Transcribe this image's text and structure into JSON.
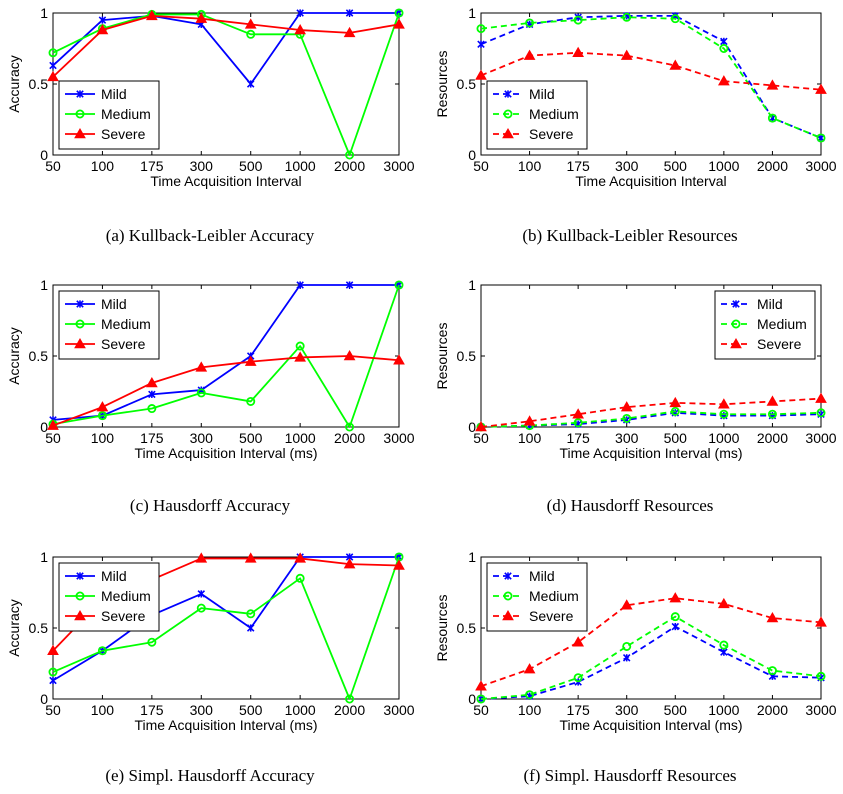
{
  "chart_data": [
    {
      "type": "line",
      "caption": "(a)  Kullback-Leibler Accuracy",
      "xlabel": "Time Acquisition Interval",
      "ylabel": "Accuracy",
      "categories": [
        "50",
        "100",
        "175",
        "300",
        "500",
        "1000",
        "2000",
        "3000"
      ],
      "ylim": [
        0,
        1
      ],
      "yticks": [
        "0",
        "0.5",
        "1"
      ],
      "legend_position": "bottom-left",
      "dashed": false,
      "series": [
        {
          "name": "Mild",
          "color": "#0000ff",
          "marker": "x",
          "values": [
            0.63,
            0.95,
            0.98,
            0.92,
            0.5,
            1.0,
            1.0,
            1.0
          ]
        },
        {
          "name": "Medium",
          "color": "#00ff00",
          "marker": "o",
          "values": [
            0.72,
            0.89,
            0.99,
            0.99,
            0.85,
            0.85,
            0.0,
            1.0
          ]
        },
        {
          "name": "Severe",
          "color": "#ff0000",
          "marker": "triangle",
          "values": [
            0.55,
            0.88,
            0.98,
            0.96,
            0.92,
            0.88,
            0.86,
            0.92
          ]
        }
      ]
    },
    {
      "type": "line",
      "caption": "(b)  Kullback-Leibler Resources",
      "xlabel": "Time Acquisition Interval",
      "ylabel": "Resources",
      "categories": [
        "50",
        "100",
        "175",
        "300",
        "500",
        "1000",
        "2000",
        "3000"
      ],
      "ylim": [
        0,
        1
      ],
      "yticks": [
        "0",
        "0.5",
        "1"
      ],
      "legend_position": "bottom-left",
      "dashed": true,
      "series": [
        {
          "name": "Mild",
          "color": "#0000ff",
          "marker": "x",
          "values": [
            0.78,
            0.92,
            0.97,
            0.98,
            0.98,
            0.8,
            0.26,
            0.12
          ]
        },
        {
          "name": "Medium",
          "color": "#00ff00",
          "marker": "o",
          "values": [
            0.89,
            0.93,
            0.95,
            0.97,
            0.96,
            0.75,
            0.26,
            0.12
          ]
        },
        {
          "name": "Severe",
          "color": "#ff0000",
          "marker": "triangle",
          "values": [
            0.56,
            0.7,
            0.72,
            0.7,
            0.63,
            0.52,
            0.49,
            0.46
          ]
        }
      ]
    },
    {
      "type": "line",
      "caption": "(c)  Hausdorff Accuracy",
      "xlabel": "Time Acquisition Interval (ms)",
      "ylabel": "Accuracy",
      "categories": [
        "50",
        "100",
        "175",
        "300",
        "500",
        "1000",
        "2000",
        "3000"
      ],
      "ylim": [
        0,
        1
      ],
      "yticks": [
        "0",
        "0.5",
        "1"
      ],
      "legend_position": "top-left",
      "dashed": false,
      "series": [
        {
          "name": "Mild",
          "color": "#0000ff",
          "marker": "x",
          "values": [
            0.05,
            0.08,
            0.23,
            0.26,
            0.5,
            1.0,
            1.0,
            1.0
          ]
        },
        {
          "name": "Medium",
          "color": "#00ff00",
          "marker": "o",
          "values": [
            0.02,
            0.08,
            0.13,
            0.24,
            0.18,
            0.57,
            0.0,
            1.0
          ]
        },
        {
          "name": "Severe",
          "color": "#ff0000",
          "marker": "triangle",
          "values": [
            0.01,
            0.14,
            0.31,
            0.42,
            0.46,
            0.49,
            0.5,
            0.47
          ]
        }
      ]
    },
    {
      "type": "line",
      "caption": "(d)  Hausdorff Resources",
      "xlabel": "Time Acquisition Interval (ms)",
      "ylabel": "Resources",
      "categories": [
        "50",
        "100",
        "175",
        "300",
        "500",
        "1000",
        "2000",
        "3000"
      ],
      "ylim": [
        0,
        1
      ],
      "yticks": [
        "0",
        "0.5",
        "1"
      ],
      "legend_position": "top-right",
      "dashed": true,
      "series": [
        {
          "name": "Mild",
          "color": "#0000ff",
          "marker": "x",
          "values": [
            0.0,
            0.01,
            0.02,
            0.05,
            0.1,
            0.08,
            0.08,
            0.09
          ]
        },
        {
          "name": "Medium",
          "color": "#00ff00",
          "marker": "o",
          "values": [
            0.0,
            0.01,
            0.03,
            0.06,
            0.11,
            0.09,
            0.09,
            0.1
          ]
        },
        {
          "name": "Severe",
          "color": "#ff0000",
          "marker": "triangle",
          "values": [
            0.0,
            0.04,
            0.09,
            0.14,
            0.17,
            0.16,
            0.18,
            0.2
          ]
        }
      ]
    },
    {
      "type": "line",
      "caption": "(e)  Simpl. Hausdorff Accuracy",
      "xlabel": "Time Acquisition Interval (ms)",
      "ylabel": "Accuracy",
      "categories": [
        "50",
        "100",
        "175",
        "300",
        "500",
        "1000",
        "2000",
        "3000"
      ],
      "ylim": [
        0,
        1
      ],
      "yticks": [
        "0",
        "0.5",
        "1"
      ],
      "legend_position": "top-left",
      "dashed": false,
      "series": [
        {
          "name": "Mild",
          "color": "#0000ff",
          "marker": "x",
          "values": [
            0.13,
            0.34,
            0.59,
            0.74,
            0.5,
            1.0,
            1.0,
            1.0
          ]
        },
        {
          "name": "Medium",
          "color": "#00ff00",
          "marker": "o",
          "values": [
            0.19,
            0.34,
            0.4,
            0.64,
            0.6,
            0.85,
            0.0,
            1.0
          ]
        },
        {
          "name": "Severe",
          "color": "#ff0000",
          "marker": "triangle",
          "values": [
            0.34,
            0.7,
            0.84,
            0.99,
            0.99,
            0.99,
            0.95,
            0.94
          ]
        }
      ]
    },
    {
      "type": "line",
      "caption": "(f)  Simpl. Hausdorff Resources",
      "xlabel": "Time Acquisition Interval (ms)",
      "ylabel": "Resources",
      "categories": [
        "50",
        "100",
        "175",
        "300",
        "500",
        "1000",
        "2000",
        "3000"
      ],
      "ylim": [
        0,
        1
      ],
      "yticks": [
        "0",
        "0.5",
        "1"
      ],
      "legend_position": "top-left",
      "dashed": true,
      "series": [
        {
          "name": "Mild",
          "color": "#0000ff",
          "marker": "x",
          "values": [
            0.0,
            0.02,
            0.12,
            0.29,
            0.51,
            0.33,
            0.16,
            0.15
          ]
        },
        {
          "name": "Medium",
          "color": "#00ff00",
          "marker": "o",
          "values": [
            0.0,
            0.03,
            0.15,
            0.37,
            0.58,
            0.38,
            0.2,
            0.16
          ]
        },
        {
          "name": "Severe",
          "color": "#ff0000",
          "marker": "triangle",
          "values": [
            0.09,
            0.21,
            0.4,
            0.66,
            0.71,
            0.67,
            0.57,
            0.54
          ]
        }
      ]
    }
  ]
}
